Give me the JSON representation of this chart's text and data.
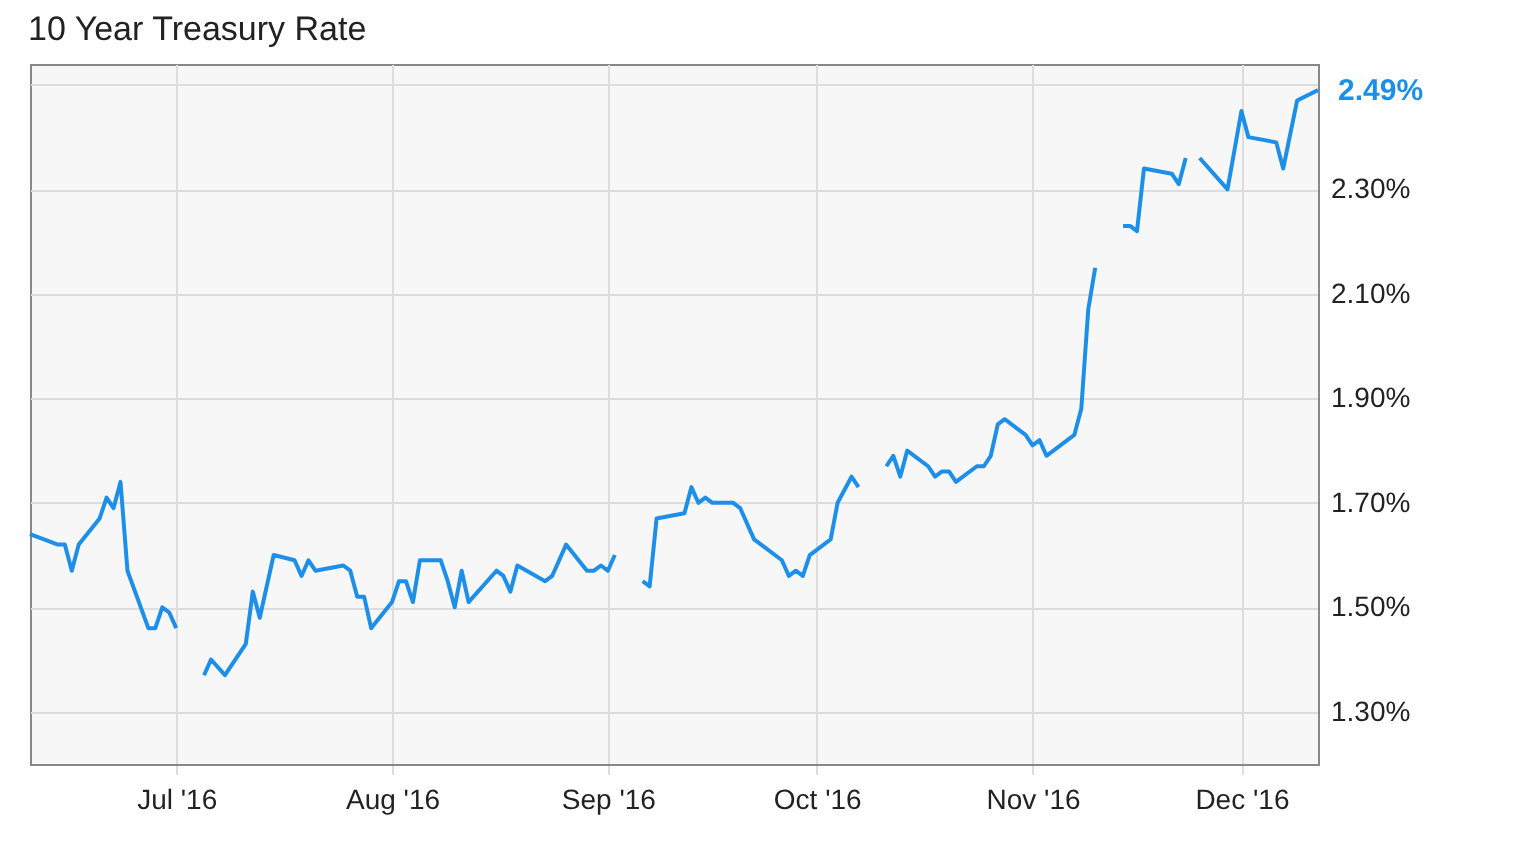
{
  "chart_data": {
    "type": "line",
    "title": "10 Year Treasury Rate",
    "x": [
      "2016-06-10",
      "2016-06-14",
      "2016-06-15",
      "2016-06-16",
      "2016-06-17",
      "2016-06-20",
      "2016-06-21",
      "2016-06-22",
      "2016-06-23",
      "2016-06-24",
      "2016-06-27",
      "2016-06-28",
      "2016-06-29",
      "2016-06-30",
      "2016-07-01",
      "2016-07-04",
      "2016-07-05",
      "2016-07-06",
      "2016-07-08",
      "2016-07-11",
      "2016-07-12",
      "2016-07-13",
      "2016-07-15",
      "2016-07-18",
      "2016-07-19",
      "2016-07-20",
      "2016-07-21",
      "2016-07-25",
      "2016-07-26",
      "2016-07-27",
      "2016-07-28",
      "2016-07-29",
      "2016-08-01",
      "2016-08-02",
      "2016-08-03",
      "2016-08-04",
      "2016-08-05",
      "2016-08-08",
      "2016-08-09",
      "2016-08-10",
      "2016-08-11",
      "2016-08-12",
      "2016-08-16",
      "2016-08-17",
      "2016-08-18",
      "2016-08-19",
      "2016-08-23",
      "2016-08-24",
      "2016-08-26",
      "2016-08-29",
      "2016-08-30",
      "2016-08-31",
      "2016-09-01",
      "2016-09-02",
      "2016-09-05",
      "2016-09-06",
      "2016-09-07",
      "2016-09-08",
      "2016-09-12",
      "2016-09-13",
      "2016-09-14",
      "2016-09-15",
      "2016-09-16",
      "2016-09-19",
      "2016-09-20",
      "2016-09-22",
      "2016-09-26",
      "2016-09-27",
      "2016-09-28",
      "2016-09-29",
      "2016-09-30",
      "2016-10-03",
      "2016-10-04",
      "2016-10-06",
      "2016-10-07",
      "2016-10-10",
      "2016-10-11",
      "2016-10-12",
      "2016-10-13",
      "2016-10-14",
      "2016-10-17",
      "2016-10-18",
      "2016-10-19",
      "2016-10-20",
      "2016-10-21",
      "2016-10-24",
      "2016-10-25",
      "2016-10-26",
      "2016-10-27",
      "2016-10-28",
      "2016-10-31",
      "2016-11-01",
      "2016-11-02",
      "2016-11-03",
      "2016-11-07",
      "2016-11-08",
      "2016-11-09",
      "2016-11-10",
      "2016-11-11",
      "2016-11-14",
      "2016-11-15",
      "2016-11-16",
      "2016-11-17",
      "2016-11-21",
      "2016-11-22",
      "2016-11-23",
      "2016-11-24",
      "2016-11-25",
      "2016-11-29",
      "2016-12-01",
      "2016-12-02",
      "2016-12-06",
      "2016-12-07",
      "2016-12-09",
      "2016-12-12"
    ],
    "series": [
      {
        "color": "#1e8fe8",
        "values": [
          1.64,
          1.62,
          1.62,
          1.57,
          1.62,
          1.67,
          1.71,
          1.69,
          1.74,
          1.57,
          1.46,
          1.46,
          1.5,
          1.49,
          1.46,
          null,
          1.37,
          1.4,
          1.37,
          1.43,
          1.53,
          1.48,
          1.6,
          1.59,
          1.56,
          1.59,
          1.57,
          1.58,
          1.57,
          1.52,
          1.52,
          1.46,
          1.51,
          1.55,
          1.55,
          1.51,
          1.59,
          1.59,
          1.55,
          1.5,
          1.57,
          1.51,
          1.57,
          1.56,
          1.53,
          1.58,
          1.55,
          1.56,
          1.62,
          1.57,
          1.57,
          1.58,
          1.57,
          1.6,
          null,
          1.55,
          1.54,
          1.67,
          1.68,
          1.73,
          1.7,
          1.71,
          1.7,
          1.7,
          1.69,
          1.63,
          1.59,
          1.56,
          1.57,
          1.56,
          1.6,
          1.63,
          1.7,
          1.75,
          1.73,
          null,
          1.77,
          1.79,
          1.75,
          1.8,
          1.77,
          1.75,
          1.76,
          1.76,
          1.74,
          1.77,
          1.77,
          1.79,
          1.85,
          1.86,
          1.83,
          1.81,
          1.82,
          1.79,
          1.83,
          1.88,
          2.07,
          2.15,
          null,
          2.23,
          2.23,
          2.22,
          2.34,
          2.33,
          2.31,
          2.36,
          null,
          2.36,
          2.3,
          2.45,
          2.4,
          2.39,
          2.34,
          2.47,
          2.49
        ]
      }
    ],
    "xlim": [
      "2016-06-10",
      "2016-12-12"
    ],
    "xticks": [
      {
        "value": "2016-07-01",
        "label": "Jul '16"
      },
      {
        "value": "2016-08-01",
        "label": "Aug '16"
      },
      {
        "value": "2016-09-01",
        "label": "Sep '16"
      },
      {
        "value": "2016-10-01",
        "label": "Oct '16"
      },
      {
        "value": "2016-11-01",
        "label": "Nov '16"
      },
      {
        "value": "2016-12-01",
        "label": "Dec '16"
      }
    ],
    "ylim": [
      1.2,
      2.54
    ],
    "yticks": [
      {
        "value": 1.3,
        "label": "1.30%"
      },
      {
        "value": 1.5,
        "label": "1.50%"
      },
      {
        "value": 1.7,
        "label": "1.70%"
      },
      {
        "value": 1.9,
        "label": "1.90%"
      },
      {
        "value": 2.1,
        "label": "2.10%"
      },
      {
        "value": 2.3,
        "label": "2.30%"
      },
      {
        "value": 2.5,
        "label": null
      }
    ],
    "grid": true,
    "annotations": [
      {
        "text": "2.49%",
        "x": "2016-12-12",
        "y": 2.49
      }
    ]
  }
}
